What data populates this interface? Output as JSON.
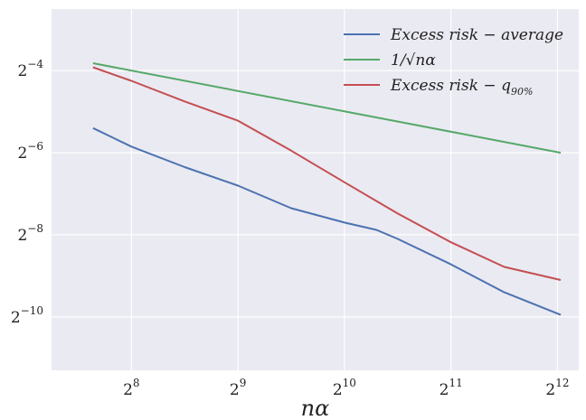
{
  "chart_data": {
    "type": "line",
    "title": "",
    "xlabel": "nα",
    "ylabel": "",
    "scale": {
      "x": "log2",
      "y": "log2"
    },
    "xlim_exp": [
      7.25,
      12.2
    ],
    "ylim_exp": [
      -11.3,
      -2.5
    ],
    "grid": true,
    "legend_position": "top-right",
    "x_ticks": [
      {
        "base": "2",
        "exp": "8",
        "value": 8
      },
      {
        "base": "2",
        "exp": "9",
        "value": 9
      },
      {
        "base": "2",
        "exp": "10",
        "value": 10
      },
      {
        "base": "2",
        "exp": "11",
        "value": 11
      },
      {
        "base": "2",
        "exp": "12",
        "value": 12
      }
    ],
    "y_ticks": [
      {
        "base": "2",
        "exp": "−4",
        "value": -4
      },
      {
        "base": "2",
        "exp": "−6",
        "value": -6
      },
      {
        "base": "2",
        "exp": "−8",
        "value": -8
      },
      {
        "base": "2",
        "exp": "−10",
        "value": -10
      }
    ],
    "series": [
      {
        "name": "Excess risk − average",
        "color": "#4c72b0",
        "points": [
          [
            7.64,
            -5.4
          ],
          [
            8.0,
            -5.85
          ],
          [
            8.5,
            -6.35
          ],
          [
            9.0,
            -6.8
          ],
          [
            9.5,
            -7.35
          ],
          [
            10.0,
            -7.7
          ],
          [
            10.3,
            -7.88
          ],
          [
            10.5,
            -8.1
          ],
          [
            11.0,
            -8.72
          ],
          [
            11.5,
            -9.4
          ],
          [
            12.03,
            -9.95
          ]
        ]
      },
      {
        "name": "1/√nα",
        "color": "#55a868",
        "points": [
          [
            7.64,
            -3.82
          ],
          [
            12.03,
            -6.0
          ]
        ]
      },
      {
        "name": "Excess risk − q90%",
        "color": "#c44e52",
        "points": [
          [
            7.64,
            -3.92
          ],
          [
            8.0,
            -4.25
          ],
          [
            8.5,
            -4.75
          ],
          [
            9.0,
            -5.22
          ],
          [
            9.5,
            -5.95
          ],
          [
            10.0,
            -6.72
          ],
          [
            10.5,
            -7.48
          ],
          [
            11.0,
            -8.18
          ],
          [
            11.5,
            -8.78
          ],
          [
            12.03,
            -9.1
          ]
        ]
      }
    ],
    "legend": [
      {
        "label": "Excess risk − average",
        "sub": ""
      },
      {
        "label": "1/√nα",
        "sub": ""
      },
      {
        "label": "Excess risk − q",
        "sub": "90%"
      }
    ]
  }
}
